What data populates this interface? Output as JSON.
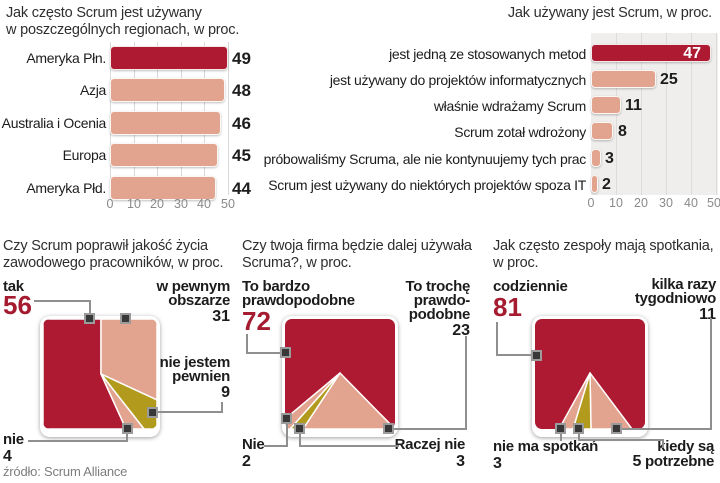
{
  "source": "źródło: Scrum Alliance",
  "colors": {
    "dark_red": "#ad1a31",
    "salmon": "#e2a38f",
    "olive": "#b29a1d",
    "value_red": "#a51c30",
    "text": "#1c1c1c",
    "muted": "#8a8a8a",
    "plot_bg": "#efeeec",
    "grid": "#dcdcda",
    "grid_light": "#d9d9d9"
  },
  "chart_data": [
    {
      "type": "bar",
      "orientation": "horizontal",
      "title": "Jak często Scrum jest używany w poszczególnych regionach, w proc.",
      "title_lines": [
        "Jak często Scrum jest używany",
        "w poszczególnych regionach, w proc."
      ],
      "categories": [
        "Ameryka Płn.",
        "Azja",
        "Australia i Ocenia",
        "Europa",
        "Ameryka Płd."
      ],
      "values": [
        49,
        48,
        46,
        45,
        44
      ],
      "xlim": [
        0,
        50
      ],
      "xticks": [
        "0",
        "10",
        "20",
        "30",
        "40",
        "50"
      ],
      "highlight_color": "dark_red",
      "bar_color": "salmon",
      "grid": true
    },
    {
      "type": "bar",
      "orientation": "horizontal",
      "title": "Jak używany jest Scrum, w proc.",
      "title_lines": [
        "Jak używany jest Scrum, w proc."
      ],
      "categories": [
        "jest jedną ze stosowanych metod",
        "jest używany do projektów informatycznych",
        "właśnie wdrażamy Scrum",
        "Scrum zotał wdrożony",
        "próbowaliśmy Scruma, ale nie kontynuujemy tych prac",
        "Scrum jest używany do niektórych projektów spoza IT"
      ],
      "values": [
        47,
        25,
        11,
        8,
        3,
        2
      ],
      "xlim": [
        0,
        50
      ],
      "xticks": [
        "0",
        "10",
        "20",
        "30",
        "40",
        "50"
      ],
      "highlight_color": "dark_red",
      "bar_color": "salmon",
      "grid": true
    },
    {
      "type": "square-pie",
      "title": "Czy Scrum poprawił jakość życia zawodowego pracowników, w proc.",
      "title_lines": [
        "Czy Scrum poprawił jakość życia",
        "zawodowego pracowników, w proc."
      ],
      "slices": [
        {
          "label": "tak",
          "label_lines": [
            "tak"
          ],
          "value": 56,
          "color": "dark_red"
        },
        {
          "label": "w pewnym obszarze",
          "label_lines": [
            "w pewnym",
            "obszarze"
          ],
          "value": 31,
          "color": "salmon"
        },
        {
          "label": "nie jestem pewnien",
          "label_lines": [
            "nie jestem",
            "pewnien"
          ],
          "value": 9,
          "color": "olive"
        },
        {
          "label": "nie",
          "label_lines": [
            "nie"
          ],
          "value": 4,
          "color": "salmon"
        }
      ]
    },
    {
      "type": "square-pie",
      "title": "Czy twoja firma będzie dalej używała Scruma?, w proc.",
      "title_lines": [
        "Czy twoja firma będzie dalej używała",
        "Scruma?, w proc."
      ],
      "slices": [
        {
          "label": "To bardzo prawdopodobne",
          "label_lines": [
            "To bardzo",
            "prawdopodobne"
          ],
          "value": 72,
          "color": "dark_red"
        },
        {
          "label": "To trochę prawdopodobne",
          "label_lines": [
            "To trochę",
            "prawdo-",
            "podobne"
          ],
          "value": 23,
          "color": "salmon"
        },
        {
          "label": "Raczej nie",
          "label_lines": [
            "Raczej nie"
          ],
          "value": 3,
          "color": "olive"
        },
        {
          "label": "Nie",
          "label_lines": [
            "Nie"
          ],
          "value": 2,
          "color": "salmon"
        }
      ]
    },
    {
      "type": "square-pie",
      "title": "Jak często zespoły mają spotkania, w proc.",
      "title_lines": [
        "Jak często zespoły mają spotkania,",
        "w proc."
      ],
      "slices": [
        {
          "label": "codziennie",
          "label_lines": [
            "codziennie"
          ],
          "value": 81,
          "color": "dark_red"
        },
        {
          "label": "kilka razy tygodniowo",
          "label_lines": [
            "kilka razy",
            "tygodniowo"
          ],
          "value": 11,
          "color": "salmon"
        },
        {
          "label": "kiedy są potrzebne",
          "label_lines": [
            "kiedy są",
            "potrzebne"
          ],
          "value": 5,
          "color": "olive"
        },
        {
          "label": "nie ma spotkań",
          "label_lines": [
            "nie ma spotkań"
          ],
          "value": 3,
          "color": "salmon"
        }
      ]
    }
  ]
}
